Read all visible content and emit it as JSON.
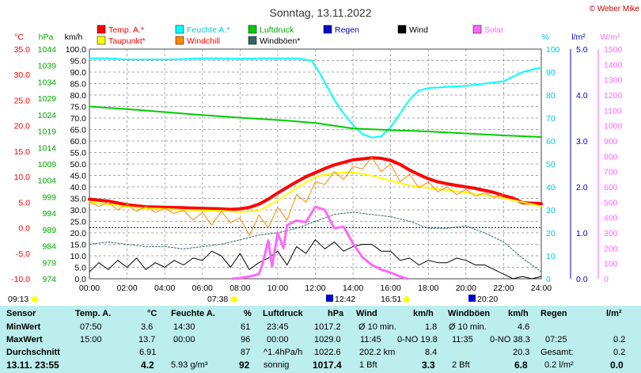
{
  "header": {
    "title": "Sonntag, 13.11.2022",
    "copyright": "© Weber Mike"
  },
  "legend": [
    {
      "label": "Temp. A.*",
      "color": "#ff0000",
      "text_color": "#ff0000"
    },
    {
      "label": "Feuchte A.*",
      "color": "#00ffff",
      "text_color": "#00cccc"
    },
    {
      "label": "Luftdruck",
      "color": "#00cc00",
      "text_color": "#00aa00"
    },
    {
      "label": "Regen",
      "color": "#0000cc",
      "text_color": "#0000cc"
    },
    {
      "label": "Wind",
      "color": "#000000",
      "text_color": "#000000"
    },
    {
      "label": "Solar",
      "color": "#ff66ff",
      "text_color": "#ff66ff"
    },
    {
      "label": "Taupunkt*",
      "color": "#ffff00",
      "text_color": "#ff0000"
    },
    {
      "label": "Windchill",
      "color": "#ff8800",
      "text_color": "#ff0000"
    },
    {
      "label": "Windböen*",
      "color": "#336666",
      "text_color": "#000000"
    }
  ],
  "axis_units": {
    "temp": "°C",
    "press": "hPa",
    "wind": "km/h",
    "hum": "%",
    "rain": "l/m²",
    "solar": "W/m²"
  },
  "sun_times": {
    "rise": "07:38",
    "set": "16:51",
    "start": "09:13"
  },
  "moon_times": {
    "rise": "12:42",
    "set": "20:20"
  },
  "chart_data": {
    "type": "line",
    "title": "Sonntag, 13.11.2022",
    "x_ticks": [
      "00:00",
      "02:00",
      "04:00",
      "06:00",
      "08:00",
      "10:00",
      "12:00",
      "14:00",
      "16:00",
      "18:00",
      "20:00",
      "22:00",
      "24:00"
    ],
    "x_range_hours": [
      0,
      24
    ],
    "axes": {
      "temp": {
        "unit": "°C",
        "range": [
          -10,
          35
        ],
        "ticks": [
          "35.0",
          "30.0",
          "25.0",
          "20.0",
          "15.0",
          "10.0",
          "5.0",
          "0.0",
          "-5.0",
          "-10.0"
        ]
      },
      "press": {
        "unit": "hPa",
        "range": [
          974,
          1044
        ],
        "ticks": [
          "1044",
          "1039",
          "1034",
          "1029",
          "1024",
          "1019",
          "1014",
          "1009",
          "1004",
          "999",
          "994",
          "989",
          "984",
          "979",
          "974"
        ]
      },
      "wind": {
        "unit": "km/h",
        "range": [
          0,
          100
        ],
        "ticks": [
          "100.0",
          "95.0",
          "90.0",
          "85.0",
          "80.0",
          "75.0",
          "70.0",
          "65.0",
          "60.0",
          "55.0",
          "50.0",
          "45.0",
          "40.0",
          "35.0",
          "30.0",
          "25.0",
          "20.0",
          "15.0",
          "10.0",
          "5.0",
          "0.0"
        ]
      },
      "hum": {
        "unit": "%",
        "range": [
          0,
          100
        ],
        "ticks": [
          "100",
          "90",
          "80",
          "70",
          "60",
          "50",
          "40",
          "30",
          "20",
          "10",
          "0"
        ]
      },
      "rain": {
        "unit": "l/m²",
        "range": [
          0,
          5
        ],
        "ticks": [
          "5.0",
          "4.0",
          "3.0",
          "2.0",
          "1.0",
          "0.0"
        ]
      },
      "solar": {
        "unit": "W/m²",
        "range": [
          0,
          1500
        ],
        "ticks": [
          "1500",
          "1400",
          "1300",
          "1200",
          "1100",
          "1000",
          "900",
          "800",
          "700",
          "600",
          "500",
          "400",
          "300",
          "200",
          "100",
          "0"
        ]
      }
    },
    "grid": true,
    "series": [
      {
        "name": "Temp. A.*",
        "axis": "temp",
        "color": "#ff0000",
        "width": 4,
        "x": [
          0,
          1,
          2,
          3,
          4,
          5,
          6,
          7,
          7.5,
          8,
          8.5,
          9,
          9.5,
          10,
          10.5,
          11,
          11.5,
          12,
          12.5,
          13,
          13.5,
          14,
          14.5,
          15,
          15.5,
          16,
          16.5,
          17,
          17.5,
          18,
          18.5,
          19,
          19.5,
          20,
          20.5,
          21,
          21.5,
          22,
          22.5,
          23,
          24
        ],
        "y": [
          5.6,
          5.2,
          4.5,
          4.1,
          4.0,
          3.9,
          3.8,
          3.7,
          3.6,
          3.7,
          4.0,
          4.6,
          5.6,
          6.8,
          7.9,
          9.0,
          10.0,
          10.8,
          11.6,
          12.3,
          12.8,
          13.3,
          13.5,
          13.7,
          13.6,
          13.2,
          12.4,
          11.3,
          10.4,
          9.6,
          9.0,
          8.6,
          8.3,
          8.0,
          7.7,
          7.3,
          6.9,
          6.3,
          5.8,
          4.9,
          4.7
        ]
      },
      {
        "name": "Taupunkt*",
        "axis": "temp",
        "color": "#ffff00",
        "width": 2,
        "x": [
          0,
          1,
          2,
          3,
          4,
          5,
          6,
          7,
          8,
          9,
          10,
          11,
          12,
          12.5,
          13,
          14,
          15,
          16,
          17,
          18,
          19,
          20,
          21,
          22,
          23,
          24
        ],
        "y": [
          5.0,
          4.6,
          4.1,
          3.8,
          3.7,
          3.5,
          3.4,
          3.3,
          3.1,
          3.3,
          5.4,
          7.8,
          10.0,
          10.4,
          10.7,
          10.9,
          10.2,
          9.2,
          8.3,
          7.8,
          7.4,
          6.9,
          6.4,
          5.8,
          5.0,
          4.2
        ]
      },
      {
        "name": "Feuchte A.*",
        "axis": "hum",
        "color": "#00ffff",
        "width": 2,
        "x": [
          0,
          1,
          2,
          3,
          4,
          5,
          6,
          7,
          8,
          9,
          10,
          11,
          11.8,
          12.2,
          12.6,
          13,
          13.5,
          14,
          14.5,
          15,
          15.5,
          16,
          16.5,
          17,
          17.5,
          18,
          19,
          20,
          21,
          22,
          23,
          24
        ],
        "y": [
          96,
          96,
          95.5,
          95.5,
          95.5,
          95.7,
          96,
          96,
          95.8,
          96,
          96,
          96,
          95,
          90,
          84,
          78,
          72,
          67,
          63,
          61.5,
          62,
          66,
          72,
          78,
          82,
          83,
          83.5,
          84,
          85,
          86,
          90,
          92
        ]
      },
      {
        "name": "Luftdruck",
        "axis": "press",
        "color": "#00cc00",
        "width": 2,
        "x": [
          0,
          2,
          4,
          6,
          8,
          10,
          12,
          14,
          16,
          18,
          20,
          22,
          24
        ],
        "y": [
          1026.5,
          1025.7,
          1024.8,
          1023.9,
          1023.1,
          1022.4,
          1021.5,
          1019.8,
          1019.3,
          1018.9,
          1018.3,
          1017.7,
          1017.2
        ]
      },
      {
        "name": "Windchill",
        "axis": "temp",
        "color": "#ff8800",
        "width": 1,
        "x": [
          0,
          0.5,
          1,
          1.5,
          2,
          2.5,
          3,
          3.5,
          4,
          4.5,
          5,
          5.5,
          6,
          6.5,
          7,
          7.5,
          8,
          8.5,
          9,
          9.5,
          10,
          10.5,
          11,
          11.5,
          12,
          12.5,
          13,
          13.5,
          14,
          14.5,
          15,
          15.5,
          16,
          16.5,
          17,
          17.5,
          18,
          18.5,
          19,
          19.5,
          20,
          20.5,
          21,
          21.5,
          22
        ],
        "y": [
          5.0,
          4.2,
          5.0,
          3.5,
          4.6,
          3.2,
          4.2,
          3.0,
          3.8,
          2.8,
          3.4,
          1.5,
          3.0,
          0.5,
          3.2,
          1.0,
          1.9,
          -1.5,
          2.5,
          0.0,
          4.0,
          1.5,
          6.5,
          5.0,
          9.0,
          8.5,
          11.0,
          9.5,
          12.0,
          11.5,
          13.8,
          11.0,
          12.5,
          9.0,
          10.5,
          7.8,
          9.0,
          7.0,
          8.0,
          6.5,
          7.5,
          6.2,
          6.8,
          6.0,
          6.5
        ]
      },
      {
        "name": "Windböen*",
        "axis": "wind",
        "color": "#336666",
        "width": 1,
        "dash": "2,2",
        "x": [
          0,
          1,
          2,
          3,
          4,
          5,
          6,
          7,
          8,
          9,
          10,
          11,
          12,
          13,
          14,
          15,
          16,
          17,
          18,
          19,
          20,
          21,
          22,
          23,
          24
        ],
        "y": [
          15,
          16,
          15,
          14,
          14,
          13,
          14,
          15,
          17,
          19,
          20,
          22,
          25,
          28,
          29,
          28,
          27,
          25,
          22,
          22,
          23,
          20,
          16,
          9,
          3
        ]
      },
      {
        "name": "Wind",
        "axis": "wind",
        "color": "#000000",
        "width": 1,
        "x": [
          0,
          0.5,
          1,
          1.5,
          2,
          2.5,
          3,
          3.5,
          4,
          4.5,
          5,
          5.5,
          6,
          6.5,
          7,
          7.5,
          8,
          8.5,
          9,
          9.5,
          10,
          10.5,
          11,
          11.5,
          12,
          12.5,
          13,
          13.5,
          14,
          14.5,
          15,
          15.5,
          16,
          16.5,
          17,
          17.5,
          18,
          18.5,
          19,
          19.5,
          20,
          20.5,
          21,
          21.5,
          22,
          22.5,
          23,
          23.5,
          24
        ],
        "y": [
          3,
          7,
          4,
          8,
          5,
          9,
          4,
          7,
          5,
          8,
          6,
          9,
          8,
          12,
          10,
          5,
          11,
          4,
          7,
          9,
          12,
          6,
          14,
          11,
          17,
          13,
          16,
          12,
          14,
          15,
          15,
          12,
          12,
          8,
          9,
          6,
          8,
          7,
          7,
          9,
          8,
          6,
          6,
          4,
          2,
          0,
          1,
          0,
          1
        ]
      },
      {
        "name": "Solar",
        "axis": "solar",
        "color": "#ff66ff",
        "width": 3,
        "x": [
          7.6,
          8,
          8.5,
          9,
          9.2,
          9.5,
          9.7,
          10,
          10.3,
          10.5,
          11,
          11.5,
          12,
          12.5,
          13,
          13.5,
          14,
          14.5,
          15,
          15.5,
          16,
          16.5,
          16.9
        ],
        "y": [
          0,
          5,
          15,
          30,
          100,
          250,
          80,
          300,
          200,
          350,
          380,
          370,
          470,
          450,
          330,
          340,
          230,
          140,
          90,
          60,
          40,
          15,
          0
        ]
      },
      {
        "name": "Regen",
        "axis": "rain",
        "color": "#0000cc",
        "width": 0,
        "x": [
          0,
          24
        ],
        "y": [
          0,
          0
        ]
      }
    ],
    "reference_line": {
      "axis": "temp",
      "value": 0.0,
      "color": "#0000cc"
    }
  },
  "table": {
    "rows": [
      {
        "label": "Sensor",
        "c1": "Temp. A.",
        "c1u": "°C",
        "c2": "Feuchte A.",
        "c2u": "%",
        "c3": "Luftdruck",
        "c3u": "hPa",
        "c4": "Wind",
        "c4u": "km/h",
        "c5": "Windböen",
        "c5u": "km/h",
        "c6": "Regen",
        "c6u": "l/m²"
      },
      {
        "label": "MinWert",
        "t1": "07:50",
        "v1": "3.6",
        "t2": "14:30",
        "v2": "61",
        "t3": "23:45",
        "v3": "1017.2",
        "t4": "Ø 10 min.",
        "v4": "1.8",
        "t5": "Ø 10 min.",
        "v5": "4.6",
        "t6": "",
        "v6": ""
      },
      {
        "label": "MaxWert",
        "t1": "15:00",
        "v1": "13.7",
        "t2": "00:00",
        "v2": "96",
        "t3": "00:00",
        "v3": "1029.0",
        "t4": "11:45",
        "d4": "0-NO 19.8",
        "t5": "11:35",
        "d5": "0-NO 38.3",
        "t6": "07:25",
        "v6": "0.2"
      },
      {
        "label": "Durchschnitt",
        "v1": "6.91",
        "v2": "87",
        "t3": "^1.4hPa/h",
        "v3": "1022.6",
        "t4": "202.2 km",
        "v4": "8.4",
        "v5": "20.3",
        "t6": "Gesamt:",
        "v6": "0.2"
      },
      {
        "label": "13.11.  23:55",
        "v1": "4.2",
        "t2": "5.93 g/m³",
        "v2": "92",
        "t3": "sonnig",
        "v3": "1017.4",
        "t4": "1 Bft",
        "v4": "3.3",
        "t5": "2 Bft",
        "v5": "6.8",
        "t6": "0.2 l/m²",
        "v6": "0.0"
      }
    ]
  }
}
